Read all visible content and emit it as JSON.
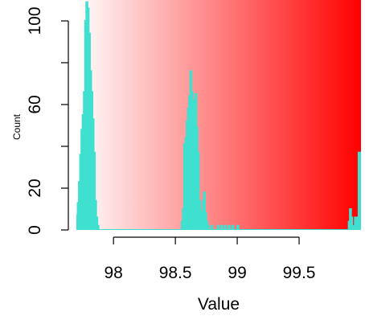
{
  "chart_data": {
    "type": "histogram",
    "title": "",
    "xlabel": "Value",
    "ylabel": "Count",
    "xlim": [
      97.7,
      100.0
    ],
    "ylim": [
      0,
      110
    ],
    "xticks": [
      {
        "value": 98,
        "label": "98"
      },
      {
        "value": 98.5,
        "label": "98.5"
      },
      {
        "value": 99,
        "label": "99"
      },
      {
        "value": 99.5,
        "label": "99.5"
      }
    ],
    "yticks": [
      {
        "value": 0,
        "label": "0"
      },
      {
        "value": 20,
        "label": "20"
      },
      {
        "value": 60,
        "label": "60"
      },
      {
        "value": 100,
        "label": "100"
      }
    ],
    "background_gradient": {
      "from": "#ffffff",
      "to": "#ff0000",
      "direction": "left-to-right"
    },
    "line_color": "#40e0d0",
    "bin_width": 0.01,
    "bins": [
      {
        "x": 97.7,
        "y": 7
      },
      {
        "x": 97.71,
        "y": 13
      },
      {
        "x": 97.72,
        "y": 23
      },
      {
        "x": 97.73,
        "y": 36
      },
      {
        "x": 97.74,
        "y": 48
      },
      {
        "x": 97.75,
        "y": 55
      },
      {
        "x": 97.76,
        "y": 66
      },
      {
        "x": 97.77,
        "y": 100
      },
      {
        "x": 97.78,
        "y": 109
      },
      {
        "x": 97.79,
        "y": 106
      },
      {
        "x": 97.8,
        "y": 94
      },
      {
        "x": 97.81,
        "y": 76
      },
      {
        "x": 97.82,
        "y": 66
      },
      {
        "x": 97.83,
        "y": 53
      },
      {
        "x": 97.84,
        "y": 37
      },
      {
        "x": 97.85,
        "y": 14
      },
      {
        "x": 97.86,
        "y": 6
      },
      {
        "x": 97.87,
        "y": 2
      },
      {
        "x": 97.88,
        "y": 0
      },
      {
        "x": 98.55,
        "y": 4
      },
      {
        "x": 98.56,
        "y": 10
      },
      {
        "x": 98.57,
        "y": 41
      },
      {
        "x": 98.58,
        "y": 44
      },
      {
        "x": 98.59,
        "y": 52
      },
      {
        "x": 98.6,
        "y": 58
      },
      {
        "x": 98.61,
        "y": 64
      },
      {
        "x": 98.62,
        "y": 76
      },
      {
        "x": 98.63,
        "y": 66
      },
      {
        "x": 98.64,
        "y": 62
      },
      {
        "x": 98.65,
        "y": 47
      },
      {
        "x": 98.66,
        "y": 65
      },
      {
        "x": 98.67,
        "y": 49
      },
      {
        "x": 98.68,
        "y": 37
      },
      {
        "x": 98.69,
        "y": 14
      },
      {
        "x": 98.7,
        "y": 9
      },
      {
        "x": 98.71,
        "y": 8
      },
      {
        "x": 98.72,
        "y": 14
      },
      {
        "x": 98.73,
        "y": 18
      },
      {
        "x": 98.74,
        "y": 8
      },
      {
        "x": 98.75,
        "y": 4
      },
      {
        "x": 98.76,
        "y": 2
      },
      {
        "x": 98.77,
        "y": 0
      },
      {
        "x": 98.79,
        "y": 2
      },
      {
        "x": 98.8,
        "y": 0
      },
      {
        "x": 98.84,
        "y": 2
      },
      {
        "x": 98.85,
        "y": 0
      },
      {
        "x": 98.87,
        "y": 2
      },
      {
        "x": 98.88,
        "y": 0
      },
      {
        "x": 98.9,
        "y": 2
      },
      {
        "x": 98.91,
        "y": 0
      },
      {
        "x": 98.93,
        "y": 2
      },
      {
        "x": 98.94,
        "y": 0
      },
      {
        "x": 98.96,
        "y": 2
      },
      {
        "x": 98.97,
        "y": 0
      },
      {
        "x": 99.0,
        "y": 2
      },
      {
        "x": 99.01,
        "y": 0
      },
      {
        "x": 99.9,
        "y": 4
      },
      {
        "x": 99.91,
        "y": 10
      },
      {
        "x": 99.92,
        "y": 6
      },
      {
        "x": 99.93,
        "y": 0
      },
      {
        "x": 99.94,
        "y": 2
      },
      {
        "x": 99.95,
        "y": 6
      },
      {
        "x": 99.96,
        "y": 6
      },
      {
        "x": 99.97,
        "y": 0
      },
      {
        "x": 99.98,
        "y": 37
      },
      {
        "x": 99.99,
        "y": 37
      }
    ]
  }
}
